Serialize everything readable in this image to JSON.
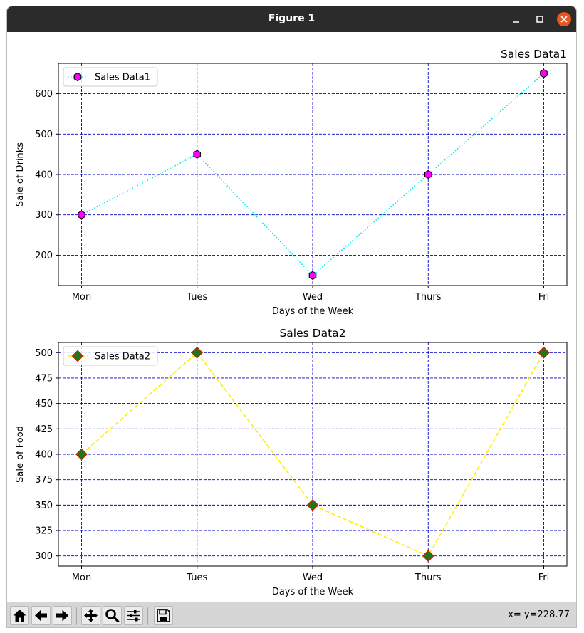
{
  "window": {
    "title": "Figure 1",
    "titlebar_color": "#2b2b2b",
    "close_color": "#e95420"
  },
  "toolbar": {
    "buttons": [
      "home-icon",
      "back-icon",
      "forward-icon",
      "pan-icon",
      "zoom-icon",
      "configure-icon",
      "save-icon"
    ],
    "coords": "x= y=228.77"
  },
  "chart_data": [
    {
      "type": "line",
      "title": "Sales Data1",
      "title_align": "right",
      "xlabel": "Days of the Week",
      "ylabel": "Sale of Drinks",
      "categories": [
        "Mon",
        "Tues",
        "Wed",
        "Thurs",
        "Fri"
      ],
      "yticks": [
        200,
        300,
        400,
        500,
        600
      ],
      "ylim": [
        125,
        675
      ],
      "grid": true,
      "grid_color": "#0000cc",
      "legend": "upper left",
      "series": [
        {
          "name": "Sales Data1",
          "values": [
            300,
            450,
            150,
            400,
            650
          ],
          "line_color": "#00e5ee",
          "line_style": "dotted",
          "marker": "hexagon",
          "marker_face": "#ff00ff",
          "marker_edge": "#000000"
        }
      ]
    },
    {
      "type": "line",
      "title": "Sales Data2",
      "title_align": "center",
      "xlabel": "Days of the Week",
      "ylabel": "Sale of Food",
      "categories": [
        "Mon",
        "Tues",
        "Wed",
        "Thurs",
        "Fri"
      ],
      "yticks": [
        300,
        325,
        350,
        375,
        400,
        425,
        450,
        475,
        500
      ],
      "ylim": [
        290,
        510
      ],
      "grid": true,
      "grid_color": "#0000cc",
      "legend": "upper left",
      "series": [
        {
          "name": "Sales Data2",
          "values": [
            400,
            500,
            350,
            300,
            500
          ],
          "line_color": "#ffee00",
          "line_style": "dashed",
          "marker": "diamond",
          "marker_face": "#1a7a1a",
          "marker_edge": "#cc2200"
        }
      ]
    }
  ]
}
